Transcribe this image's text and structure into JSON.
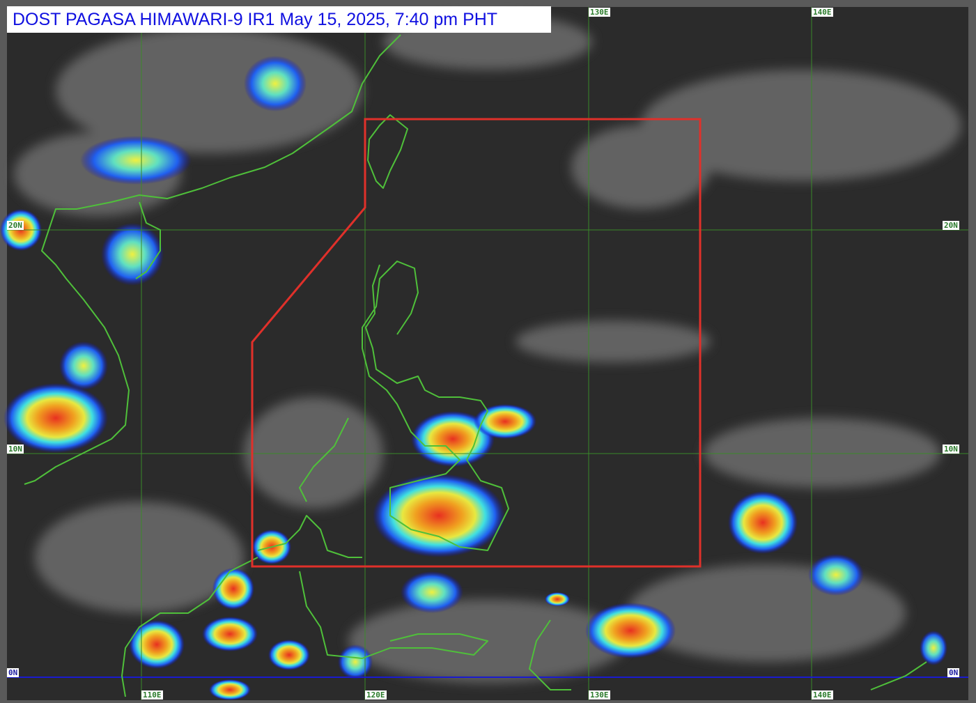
{
  "title": "DOST PAGASA HIMAWARI-9 IR1 May 15, 2025, 7:40 pm PHT",
  "longitude_labels": [
    "110E",
    "120E",
    "130E",
    "140E"
  ],
  "latitude_labels": [
    "20N",
    "10N",
    "0N"
  ],
  "colors": {
    "background": "#2a2a2a",
    "coastline": "#4fc03a",
    "gridline": "#3a8a2a",
    "equator": "#1a1ad0",
    "par_boundary": "#e0302a",
    "title_text": "#1010e0"
  }
}
